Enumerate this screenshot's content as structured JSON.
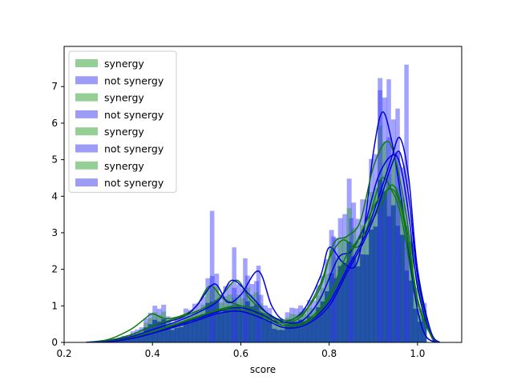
{
  "chart_data": {
    "type": "histogram-kde",
    "xlabel": "score",
    "ylabel": "",
    "xlim": [
      0.2,
      1.1
    ],
    "ylim": [
      0,
      8.1
    ],
    "xticks": [
      0.2,
      0.4,
      0.6,
      0.8,
      1.0
    ],
    "xtick_labels": [
      "0.2",
      "0.4",
      "0.6",
      "0.8",
      "1.0"
    ],
    "yticks": [
      0,
      1,
      2,
      3,
      4,
      5,
      6,
      7
    ],
    "ytick_labels": [
      "0",
      "1",
      "2",
      "3",
      "4",
      "5",
      "6",
      "7"
    ],
    "legend": {
      "placement": "upper-left",
      "entries": [
        {
          "label": "synergy",
          "color": "#2ca02c"
        },
        {
          "label": "not synergy",
          "color": "#3a3aee"
        },
        {
          "label": "synergy",
          "color": "#2ca02c"
        },
        {
          "label": "not synergy",
          "color": "#3a3aee"
        },
        {
          "label": "synergy",
          "color": "#2ca02c"
        },
        {
          "label": "not synergy",
          "color": "#3a3aee"
        },
        {
          "label": "synergy",
          "color": "#2ca02c"
        },
        {
          "label": "not synergy",
          "color": "#3a3aee"
        }
      ]
    },
    "colors": {
      "synergy_fill": "#2ca02c",
      "synergy_line": "#0d7a0d",
      "not_synergy_fill": "#3333ff",
      "not_synergy_line": "#0000dd",
      "overlap_fill": "#0b3aa8"
    },
    "series": [
      {
        "name": "synergy",
        "kind": "kde",
        "x": [
          0.25,
          0.3,
          0.35,
          0.38,
          0.4,
          0.43,
          0.47,
          0.5,
          0.53,
          0.56,
          0.6,
          0.63,
          0.66,
          0.7,
          0.74,
          0.78,
          0.8,
          0.83,
          0.86,
          0.88,
          0.9,
          0.92,
          0.94,
          0.96,
          0.98,
          1.0,
          1.02,
          1.05
        ],
        "y": [
          0.0,
          0.08,
          0.35,
          0.62,
          0.78,
          0.65,
          0.75,
          1.0,
          1.55,
          1.2,
          1.0,
          0.9,
          0.65,
          0.55,
          0.75,
          1.6,
          2.3,
          2.8,
          2.6,
          2.9,
          3.8,
          4.5,
          4.2,
          3.6,
          2.3,
          0.9,
          0.15,
          0.0
        ]
      },
      {
        "name": "not synergy",
        "kind": "kde",
        "x": [
          0.25,
          0.3,
          0.35,
          0.38,
          0.4,
          0.43,
          0.47,
          0.5,
          0.54,
          0.57,
          0.6,
          0.64,
          0.67,
          0.7,
          0.74,
          0.78,
          0.8,
          0.83,
          0.86,
          0.88,
          0.9,
          0.92,
          0.94,
          0.96,
          0.98,
          1.0,
          1.02,
          1.05
        ],
        "y": [
          0.0,
          0.05,
          0.2,
          0.35,
          0.45,
          0.55,
          0.7,
          1.0,
          1.6,
          1.1,
          1.3,
          1.95,
          1.0,
          0.6,
          0.85,
          1.8,
          2.6,
          2.2,
          2.1,
          3.2,
          5.2,
          6.3,
          5.6,
          4.2,
          2.5,
          0.9,
          0.15,
          0.0
        ]
      },
      {
        "name": "synergy",
        "kind": "kde",
        "x": [
          0.25,
          0.3,
          0.35,
          0.4,
          0.45,
          0.5,
          0.55,
          0.59,
          0.62,
          0.66,
          0.7,
          0.74,
          0.78,
          0.81,
          0.84,
          0.87,
          0.9,
          0.93,
          0.95,
          0.97,
          1.0,
          1.03,
          1.05
        ],
        "y": [
          0.0,
          0.05,
          0.2,
          0.45,
          0.65,
          0.85,
          1.2,
          1.7,
          1.2,
          0.8,
          0.6,
          0.8,
          1.5,
          2.7,
          2.9,
          3.3,
          4.8,
          5.5,
          5.0,
          3.8,
          1.6,
          0.2,
          0.0
        ]
      },
      {
        "name": "not synergy",
        "kind": "kde",
        "x": [
          0.25,
          0.3,
          0.35,
          0.4,
          0.45,
          0.5,
          0.55,
          0.58,
          0.62,
          0.66,
          0.7,
          0.74,
          0.78,
          0.82,
          0.85,
          0.88,
          0.91,
          0.94,
          0.96,
          0.98,
          1.0,
          1.03,
          1.05
        ],
        "y": [
          0.0,
          0.04,
          0.15,
          0.35,
          0.55,
          0.8,
          1.15,
          1.7,
          1.3,
          0.8,
          0.55,
          0.6,
          1.2,
          2.3,
          2.5,
          3.2,
          4.5,
          5.1,
          4.9,
          3.5,
          1.5,
          0.2,
          0.0
        ]
      },
      {
        "name": "synergy",
        "kind": "kde",
        "x": [
          0.25,
          0.3,
          0.35,
          0.4,
          0.45,
          0.5,
          0.55,
          0.6,
          0.65,
          0.7,
          0.75,
          0.8,
          0.84,
          0.88,
          0.91,
          0.94,
          0.96,
          0.98,
          1.0,
          1.03,
          1.05
        ],
        "y": [
          0.0,
          0.03,
          0.12,
          0.3,
          0.5,
          0.7,
          0.9,
          1.0,
          0.8,
          0.5,
          0.6,
          1.3,
          2.4,
          3.0,
          3.6,
          4.3,
          3.9,
          2.8,
          1.2,
          0.2,
          0.0
        ]
      },
      {
        "name": "not synergy",
        "kind": "kde",
        "x": [
          0.25,
          0.3,
          0.35,
          0.4,
          0.45,
          0.5,
          0.55,
          0.6,
          0.65,
          0.7,
          0.75,
          0.8,
          0.84,
          0.88,
          0.91,
          0.94,
          0.96,
          0.98,
          1.0,
          1.03,
          1.05
        ],
        "y": [
          0.0,
          0.02,
          0.1,
          0.25,
          0.45,
          0.65,
          0.85,
          0.95,
          0.75,
          0.45,
          0.55,
          1.1,
          2.0,
          2.9,
          3.9,
          5.0,
          5.6,
          4.5,
          2.0,
          0.3,
          0.0
        ]
      },
      {
        "name": "synergy",
        "kind": "kde",
        "x": [
          0.25,
          0.3,
          0.35,
          0.4,
          0.45,
          0.5,
          0.55,
          0.6,
          0.65,
          0.7,
          0.75,
          0.8,
          0.84,
          0.88,
          0.91,
          0.94,
          0.96,
          0.98,
          1.0,
          1.03,
          1.05
        ],
        "y": [
          0.0,
          0.03,
          0.12,
          0.3,
          0.48,
          0.68,
          0.88,
          0.9,
          0.7,
          0.45,
          0.55,
          1.2,
          2.2,
          3.2,
          3.9,
          4.2,
          3.8,
          2.6,
          1.1,
          0.2,
          0.0
        ]
      },
      {
        "name": "not synergy",
        "kind": "kde",
        "x": [
          0.25,
          0.3,
          0.35,
          0.4,
          0.45,
          0.5,
          0.55,
          0.6,
          0.65,
          0.7,
          0.75,
          0.8,
          0.84,
          0.88,
          0.91,
          0.94,
          0.96,
          0.98,
          1.0,
          1.03,
          1.05
        ],
        "y": [
          0.0,
          0.02,
          0.1,
          0.25,
          0.42,
          0.6,
          0.8,
          0.85,
          0.65,
          0.4,
          0.5,
          1.0,
          1.9,
          2.8,
          3.7,
          4.8,
          5.2,
          4.0,
          1.8,
          0.3,
          0.0
        ]
      }
    ],
    "histogram_peaks": {
      "x": [
        0.32,
        0.36,
        0.38,
        0.4,
        0.42,
        0.44,
        0.46,
        0.48,
        0.5,
        0.52,
        0.54,
        0.56,
        0.58,
        0.6,
        0.62,
        0.64,
        0.66,
        0.68,
        0.7,
        0.72,
        0.74,
        0.76,
        0.78,
        0.8,
        0.82,
        0.84,
        0.86,
        0.88,
        0.9,
        0.92,
        0.94,
        0.96,
        0.98,
        1.0
      ],
      "y": [
        0.1,
        0.3,
        0.5,
        0.95,
        1.05,
        0.6,
        0.6,
        1.0,
        0.95,
        1.5,
        2.0,
        1.3,
        1.7,
        1.4,
        1.9,
        1.4,
        1.0,
        0.5,
        0.65,
        1.05,
        0.9,
        1.2,
        1.5,
        2.8,
        3.0,
        4.2,
        3.7,
        3.6,
        5.3,
        7.0,
        5.8,
        5.2,
        3.0,
        1.0
      ]
    },
    "not_synergy_peaks": {
      "x": [
        0.535,
        0.585,
        0.61,
        0.64,
        0.81,
        0.85,
        0.915,
        0.935,
        0.955,
        0.975
      ],
      "y": [
        3.6,
        2.6,
        2.3,
        2.1,
        2.9,
        3.4,
        6.9,
        7.2,
        6.4,
        7.6
      ]
    }
  }
}
